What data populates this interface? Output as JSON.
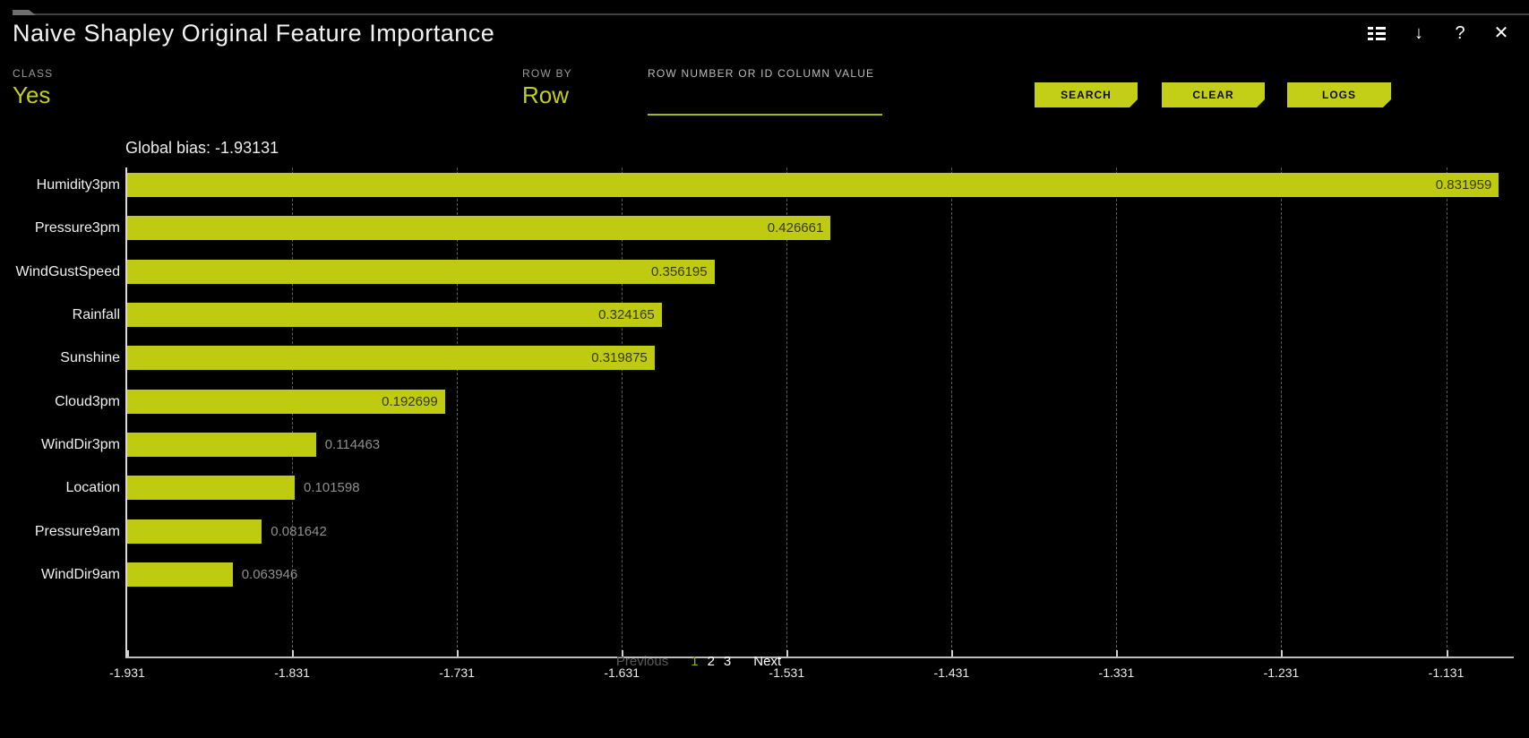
{
  "window": {
    "title": "Naive Shapley Original Feature Importance",
    "icons": {
      "download": "↓",
      "help": "?",
      "close": "✕"
    }
  },
  "controls": {
    "class_label": "CLASS",
    "class_value": "Yes",
    "row_by_label": "ROW BY",
    "row_by_value": "Row",
    "row_input_label": "ROW NUMBER OR ID COLUMN VALUE",
    "row_input_value": "",
    "search_label": "SEARCH",
    "clear_label": "CLEAR",
    "logs_label": "LOGS"
  },
  "chart_data": {
    "type": "bar",
    "orientation": "horizontal",
    "title": "Global bias: -1.93131",
    "global_bias": -1.93131,
    "categories": [
      "Humidity3pm",
      "Pressure3pm",
      "WindGustSpeed",
      "Rainfall",
      "Sunshine",
      "Cloud3pm",
      "WindDir3pm",
      "Location",
      "Pressure9am",
      "WindDir9am"
    ],
    "values": [
      0.831959,
      0.426661,
      0.356195,
      0.324165,
      0.319875,
      0.192699,
      0.114463,
      0.101598,
      0.081642,
      0.063946
    ],
    "value_labels": [
      "0.831959",
      "0.426661",
      "0.356195",
      "0.324165",
      "0.319875",
      "0.192699",
      "0.114463",
      "0.101598",
      "0.081642",
      "0.063946"
    ],
    "x_ticks": [
      "-1.931",
      "-1.831",
      "-1.731",
      "-1.631",
      "-1.531",
      "-1.431",
      "-1.331",
      "-1.231",
      "-1.131"
    ],
    "xlim": [
      -1.931,
      -1.09
    ],
    "bar_color": "#bfcb10",
    "grid": "dashed-vertical",
    "inside_label_threshold": 0.15
  },
  "pagination": {
    "previous": "Previous",
    "pages": [
      "1",
      "2",
      "3"
    ],
    "active_page": "1",
    "next": "Next"
  },
  "colors": {
    "accent": "#c3cf17",
    "background": "#000000",
    "title_text": "#f2f2f2"
  }
}
